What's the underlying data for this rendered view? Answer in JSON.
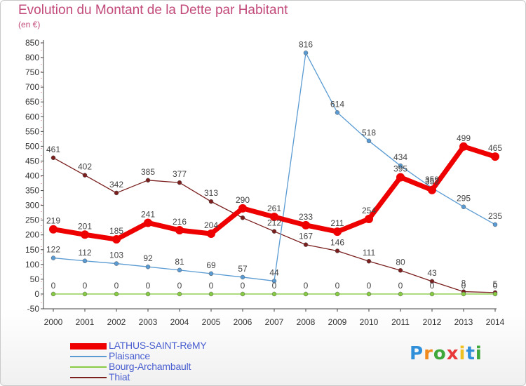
{
  "header": {
    "title": "Evolution du Montant de la Dette par Habitant",
    "subtitle": "(en €)"
  },
  "chart_data": {
    "type": "line",
    "title": "Evolution du Montant de la Dette par Habitant",
    "subtitle": "(en €)",
    "xlabel": "",
    "ylabel": "",
    "x": [
      "2000",
      "2001",
      "2002",
      "2003",
      "2004",
      "2005",
      "2006",
      "2007",
      "2008",
      "2009",
      "2010",
      "2011",
      "2012",
      "2013",
      "2014"
    ],
    "ylim": [
      -50,
      850
    ],
    "yticks": [
      -50,
      0,
      50,
      100,
      150,
      200,
      250,
      300,
      350,
      400,
      450,
      500,
      550,
      600,
      650,
      700,
      750,
      800,
      850
    ],
    "grid": false,
    "legend_position": "bottom-left",
    "series": [
      {
        "name": "Thiat",
        "color": "#7a1e1e",
        "width": 1.3,
        "values": [
          461,
          402,
          342,
          385,
          377,
          313,
          258,
          212,
          167,
          146,
          111,
          80,
          43,
          8,
          5
        ],
        "labels": [
          "461",
          "402",
          "342",
          "385",
          "377",
          "313",
          "",
          "212",
          "167",
          "146",
          "111",
          "80",
          "43",
          "8",
          "5"
        ]
      },
      {
        "name": "Plaisance",
        "color": "#5a9bd3",
        "width": 1.3,
        "values": [
          122,
          112,
          103,
          92,
          81,
          69,
          57,
          44,
          816,
          614,
          518,
          434,
          359,
          295,
          235
        ],
        "labels": [
          "122",
          "112",
          "103",
          "92",
          "81",
          "69",
          "57",
          "44",
          "816",
          "614",
          "518",
          "434",
          "359",
          "295",
          "235"
        ]
      },
      {
        "name": "Bourg-Archambault",
        "color": "#88cc44",
        "width": 1.3,
        "values": [
          0,
          0,
          0,
          0,
          0,
          0,
          0,
          0,
          0,
          0,
          0,
          0,
          0,
          0,
          0
        ],
        "labels": [
          "0",
          "0",
          "0",
          "0",
          "0",
          "0",
          "0",
          "0",
          "0",
          "0",
          "0",
          "0",
          "0",
          "0",
          "0"
        ]
      },
      {
        "name": "LATHUS-SAINT-RéMY",
        "color": "#ee0000",
        "width": 7,
        "values": [
          219,
          201,
          185,
          241,
          216,
          204,
          290,
          261,
          233,
          211,
          254,
          395,
          352,
          499,
          465
        ],
        "labels": [
          "219",
          "201",
          "185",
          "241",
          "216",
          "204",
          "290",
          "261",
          "233",
          "211",
          "254",
          "395",
          "352",
          "499",
          "465"
        ]
      }
    ]
  },
  "legend": [
    {
      "name": "LATHUS-SAINT-RéMY",
      "color": "#ee0000",
      "thickness": 9
    },
    {
      "name": "Plaisance",
      "color": "#5a9bd3",
      "thickness": 2
    },
    {
      "name": "Bourg-Archambault",
      "color": "#88cc44",
      "thickness": 2
    },
    {
      "name": "Thiat",
      "color": "#7a1e1e",
      "thickness": 2
    }
  ],
  "logo": {
    "letters": [
      "P",
      "r",
      "o",
      "x",
      "i",
      "t",
      "i"
    ],
    "colors": [
      "#2f8fd8",
      "#f08a1c",
      "#3ea83a",
      "#e83a3a",
      "#f0c020",
      "#2f8fd8",
      "#3ea83a"
    ]
  }
}
